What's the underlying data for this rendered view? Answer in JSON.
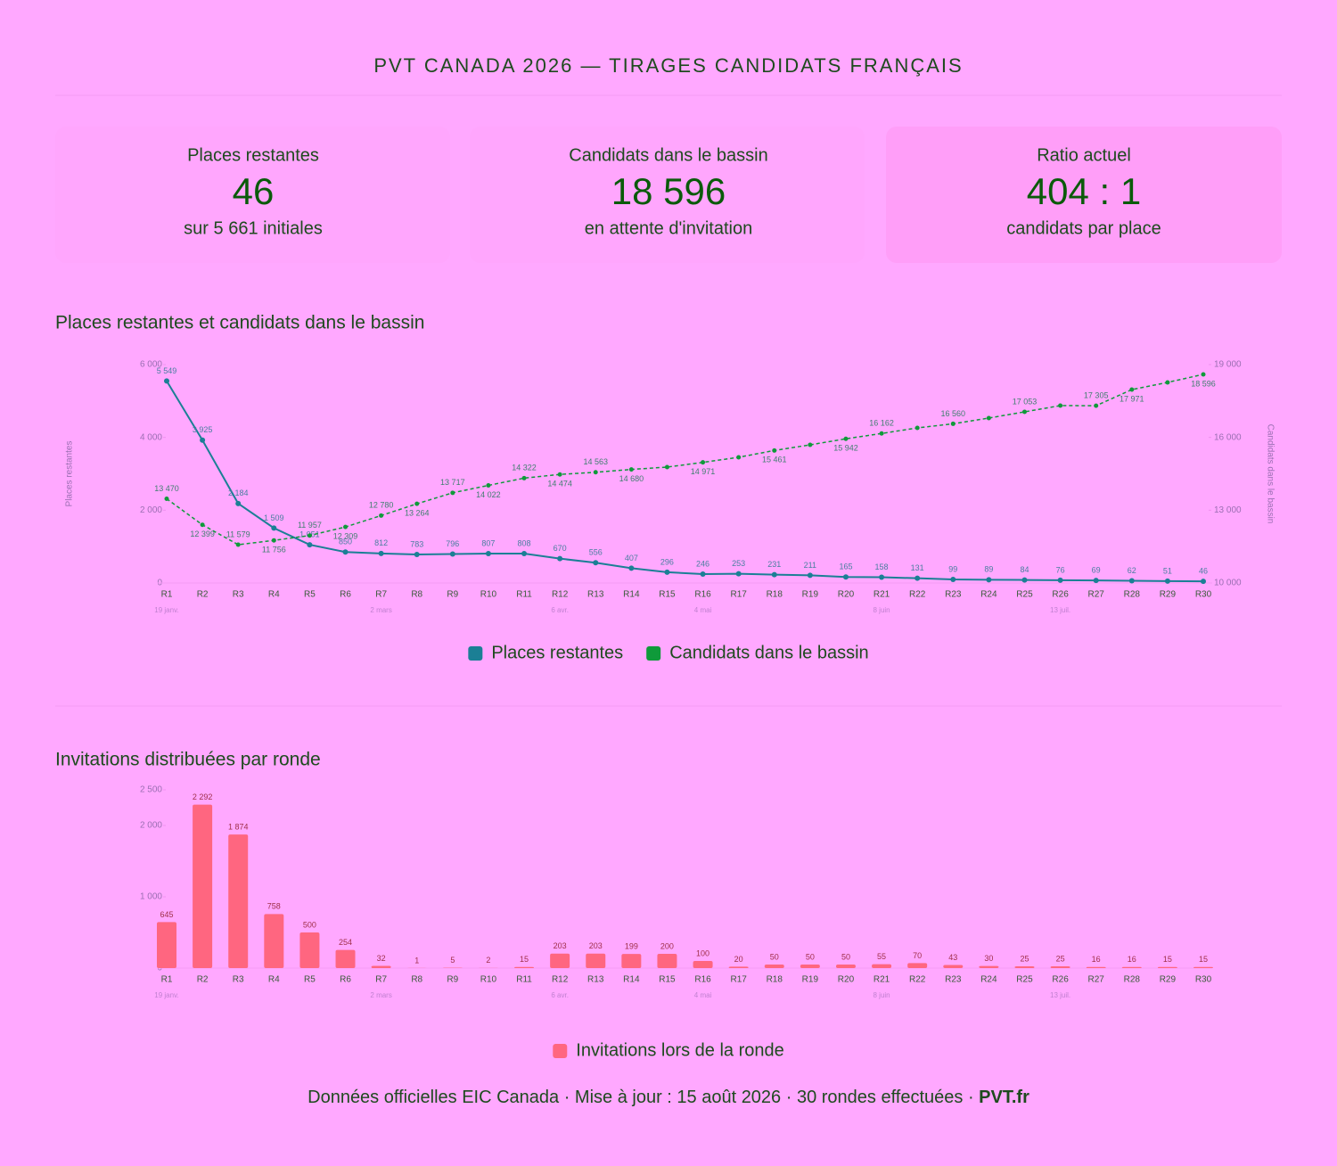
{
  "header": {
    "title": "PVT CANADA 2026 — TIRAGES CANDIDATS FRANÇAIS"
  },
  "stats": [
    {
      "label": "Places restantes",
      "value": "46",
      "sub": "sur 5 661 initiales"
    },
    {
      "label": "Candidats dans le bassin",
      "value": "18 596",
      "sub": "en attente d'invitation"
    },
    {
      "label": "Ratio actuel",
      "value": "404 : 1",
      "sub": "candidats par place"
    }
  ],
  "chart_data": [
    {
      "type": "line",
      "title": "Places restantes et candidats dans le bassin",
      "categories": [
        "R1",
        "R2",
        "R3",
        "R4",
        "R5",
        "R6",
        "R7",
        "R8",
        "R9",
        "R10",
        "R11",
        "R12",
        "R13",
        "R14",
        "R15",
        "R16",
        "R17",
        "R18",
        "R19",
        "R20",
        "R21",
        "R22",
        "R23",
        "R24",
        "R25",
        "R26",
        "R27",
        "R28",
        "R29",
        "R30"
      ],
      "dates": [
        "19 janv.",
        null,
        null,
        null,
        null,
        null,
        "2 mars",
        null,
        null,
        null,
        null,
        "6 avr.",
        null,
        null,
        null,
        "4 mai",
        null,
        null,
        null,
        null,
        "8 juin",
        null,
        null,
        null,
        null,
        "13 juil.",
        null,
        null,
        null,
        null
      ],
      "ylabel": "Places restantes",
      "y2label": "Candidats dans le bassin",
      "ylim": [
        0,
        6000
      ],
      "yticks": [
        0,
        {
          "value": 2000,
          "label": "2 000"
        },
        {
          "value": 4000,
          "label": "4 000"
        },
        {
          "value": 6000,
          "label": "6 000"
        }
      ],
      "y2lim": [
        10000,
        19000
      ],
      "y2ticks": [
        {
          "value": 10000,
          "label": "10 000"
        },
        {
          "value": 13000,
          "label": "13 000"
        },
        {
          "value": 16000,
          "label": "16 000"
        },
        {
          "value": 19000,
          "label": "19 000"
        }
      ],
      "grid": false,
      "series": [
        {
          "name": "Places restantes",
          "color": "#1b7f95",
          "dashed": false,
          "values": [
            5549,
            3925,
            2184,
            1509,
            1051,
            850,
            812,
            783,
            796,
            807,
            808,
            670,
            556,
            407,
            296,
            246,
            253,
            231,
            211,
            165,
            158,
            131,
            99,
            89,
            84,
            76,
            69,
            62,
            51,
            46
          ],
          "value_labels": [
            "5 549",
            "3 925",
            "2 184",
            "1 509",
            "1 051",
            "850",
            "812",
            "783",
            "796",
            "807",
            "808",
            "670",
            "556",
            "407",
            "296",
            "246",
            "253",
            "231",
            "211",
            "165",
            "158",
            "131",
            "99",
            "89",
            "84",
            "76",
            "69",
            "62",
            "51",
            "46"
          ]
        },
        {
          "name": "Candidats dans le bassin",
          "color": "#0f9a3a",
          "dashed": true,
          "axis": "y2",
          "values": [
            13470,
            12399,
            11579,
            11756,
            11957,
            12309,
            12780,
            13264,
            13717,
            14022,
            14322,
            14474,
            14563,
            14680,
            14776,
            14971,
            15180,
            15461,
            15694,
            15942,
            16162,
            16392,
            16560,
            16797,
            17053,
            17310,
            17305,
            17971,
            18266,
            18596
          ],
          "value_labels": [
            "13 470",
            "12 399",
            "11 579",
            "11 756",
            "11 957",
            "12 309",
            "12 780",
            "13 264",
            "13 717",
            "14 022",
            "14 322",
            "14 474",
            "14 563",
            "14 680",
            null,
            "14 971",
            null,
            "15 461",
            null,
            "15 942",
            "16 162",
            null,
            "16 560",
            null,
            "17 053",
            null,
            "17 305",
            "17 971",
            null,
            "18 596"
          ]
        }
      ]
    },
    {
      "type": "bar",
      "title": "Invitations distribuées par ronde",
      "categories": [
        "R1",
        "R2",
        "R3",
        "R4",
        "R5",
        "R6",
        "R7",
        "R8",
        "R9",
        "R10",
        "R11",
        "R12",
        "R13",
        "R14",
        "R15",
        "R16",
        "R17",
        "R18",
        "R19",
        "R20",
        "R21",
        "R22",
        "R23",
        "R24",
        "R25",
        "R26",
        "R27",
        "R28",
        "R29",
        "R30"
      ],
      "dates": [
        "19 janv.",
        null,
        null,
        null,
        null,
        null,
        "2 mars",
        null,
        null,
        null,
        null,
        "6 avr.",
        null,
        null,
        null,
        "4 mai",
        null,
        null,
        null,
        null,
        "8 juin",
        null,
        null,
        null,
        null,
        "13 juil.",
        null,
        null,
        null,
        null
      ],
      "ylim": [
        0,
        2500
      ],
      "yticks": [
        0,
        {
          "value": 1000,
          "label": "1 000"
        },
        {
          "value": 2000,
          "label": "2 000"
        },
        {
          "value": 2500,
          "label": "2 500"
        }
      ],
      "grid": false,
      "series": [
        {
          "name": "Invitations lors de la ronde",
          "color": "#ff6680",
          "values": [
            645,
            2292,
            1874,
            758,
            500,
            254,
            32,
            1,
            5,
            2,
            15,
            203,
            203,
            199,
            200,
            100,
            20,
            50,
            50,
            50,
            55,
            70,
            43,
            30,
            25,
            25,
            16,
            16,
            15,
            15
          ],
          "value_labels": [
            "645",
            "2 292",
            "1 874",
            "758",
            "500",
            "254",
            "32",
            "1",
            "5",
            "2",
            "15",
            "203",
            "203",
            "199",
            "200",
            "100",
            "20",
            "50",
            "50",
            "50",
            "55",
            "70",
            "43",
            "30",
            "25",
            "25",
            "16",
            "16",
            "15",
            "15"
          ]
        }
      ]
    }
  ],
  "footer": {
    "text": "Données officielles EIC Canada · Mise à jour : 15 août 2026 · 30 rondes effectuées · ",
    "link": "PVT.fr"
  }
}
